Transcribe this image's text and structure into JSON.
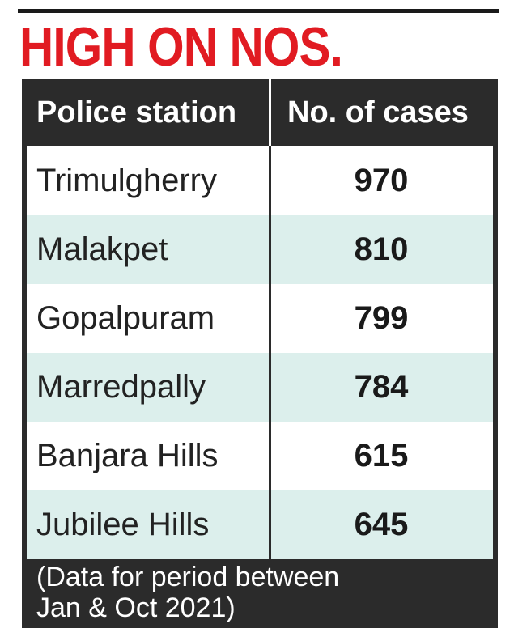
{
  "title": "HIGH ON NOS.",
  "chart_data": {
    "type": "table",
    "columns": [
      "Police station",
      "No. of cases"
    ],
    "rows": [
      {
        "station": "Trimulgherry",
        "cases": 970
      },
      {
        "station": "Malakpet",
        "cases": 810
      },
      {
        "station": "Gopalpuram",
        "cases": 799
      },
      {
        "station": "Marredpally",
        "cases": 784
      },
      {
        "station": "Banjara Hills",
        "cases": 615
      },
      {
        "station": "Jubilee Hills",
        "cases": 645
      }
    ],
    "note_line1": "(Data for period between",
    "note_line2": "Jan & Oct 2021)"
  },
  "colors": {
    "title": "#e11b22",
    "header_bg": "#2b2b2b",
    "row_shade": "#dcefec"
  }
}
